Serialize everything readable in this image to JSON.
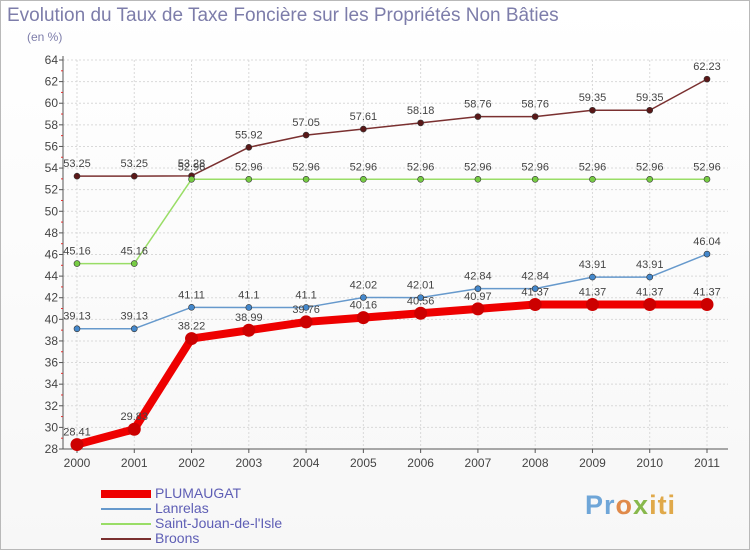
{
  "chart_data": {
    "type": "line",
    "title": "Evolution du Taux de Taxe Foncière sur les Propriétés Non Bâties",
    "ylabel": "(en %)",
    "xlabel": "",
    "ylim": [
      28,
      64
    ],
    "yticks": [
      "28",
      "30",
      "32",
      "34",
      "36",
      "38",
      "40",
      "42",
      "44",
      "46",
      "48",
      "50",
      "52",
      "54",
      "56",
      "58",
      "60",
      "62",
      "64"
    ],
    "categories": [
      "2000",
      "2001",
      "2002",
      "2003",
      "2004",
      "2005",
      "2006",
      "2007",
      "2008",
      "2009",
      "2010",
      "2011"
    ],
    "series": [
      {
        "name": "Broons",
        "color": "#7a3030",
        "dot": "#5a1818",
        "values": [
          53.25,
          53.25,
          53.28,
          55.92,
          57.05,
          57.61,
          58.18,
          58.76,
          58.76,
          59.35,
          59.35,
          62.23
        ],
        "labels": [
          "53.25",
          "53.25",
          "53.28",
          "55.92",
          "57.05",
          "57.61",
          "58.18",
          "58.76",
          "58.76",
          "59.35",
          "59.35",
          "62.23"
        ]
      },
      {
        "name": "Saint-Jouan-de-l'Isle",
        "color": "#99dd66",
        "dot": "#77cc44",
        "values": [
          45.16,
          45.16,
          52.96,
          52.96,
          52.96,
          52.96,
          52.96,
          52.96,
          52.96,
          52.96,
          52.96,
          52.96
        ],
        "labels": [
          "45.16",
          "45.16",
          "52.96",
          "52.96",
          "52.96",
          "52.96",
          "52.96",
          "52.96",
          "52.96",
          "52.96",
          "52.96",
          "52.96"
        ]
      },
      {
        "name": "Lanrelas",
        "color": "#6699cc",
        "dot": "#4488cc",
        "values": [
          39.13,
          39.13,
          41.11,
          41.1,
          41.1,
          42.02,
          42.01,
          42.84,
          42.84,
          43.91,
          43.91,
          46.04
        ],
        "labels": [
          "39.13",
          "39.13",
          "41.11",
          "41.1",
          "41.1",
          "42.02",
          "42.01",
          "42.84",
          "42.84",
          "43.91",
          "43.91",
          "46.04"
        ]
      },
      {
        "name": "PLUMAUGAT",
        "color": "#ee0000",
        "dot": "#cc0000",
        "values": [
          28.41,
          29.83,
          38.22,
          38.99,
          39.76,
          40.16,
          40.56,
          40.97,
          41.37,
          41.37,
          41.37,
          41.37
        ],
        "labels": [
          "28.41",
          "29.83",
          "38.22",
          "38.99",
          "39.76",
          "40.16",
          "40.56",
          "40.97",
          "41.37",
          "41.37",
          "41.37",
          "41.37"
        ]
      }
    ]
  },
  "legend": [
    {
      "name": "PLUMAUGAT",
      "color": "#ee0000",
      "thick": 8
    },
    {
      "name": "Lanrelas",
      "color": "#6699cc",
      "thick": 2
    },
    {
      "name": "Saint-Jouan-de-l'Isle",
      "color": "#99dd66",
      "thick": 2
    },
    {
      "name": "Broons",
      "color": "#7a3030",
      "thick": 2
    }
  ],
  "logo": {
    "part1": "Pr",
    "part2": "o",
    "part3": "x",
    "part4": "iti"
  }
}
